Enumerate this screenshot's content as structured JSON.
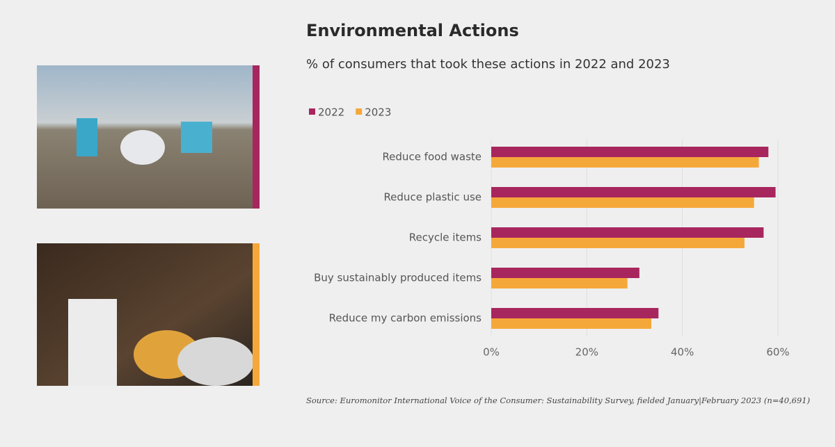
{
  "chart_data": {
    "type": "bar",
    "orientation": "horizontal",
    "title": "Environmental Actions",
    "subtitle": "% of consumers that took these actions in 2022 and 2023",
    "source": "Source: Euromonitor International Voice of the Consumer: Sustainability Survey, fielded January|February 2023 (n=40,691)",
    "categories": [
      "Reduce food waste",
      "Reduce plastic use",
      "Recycle items",
      "Buy sustainably produced items",
      "Reduce my carbon emissions"
    ],
    "series": [
      {
        "name": "2022",
        "color": "#a8265e",
        "values": [
          58,
          59.5,
          57,
          31,
          35
        ]
      },
      {
        "name": "2023",
        "color": "#f5a83a",
        "values": [
          56,
          55,
          53,
          28.5,
          33.5
        ]
      }
    ],
    "xlim": [
      0,
      60
    ],
    "xticks": [
      {
        "value": 0,
        "label": "0%"
      },
      {
        "value": 20,
        "label": "20%"
      },
      {
        "value": 40,
        "label": "40%"
      },
      {
        "value": 60,
        "label": "60%"
      }
    ],
    "grid": true
  }
}
